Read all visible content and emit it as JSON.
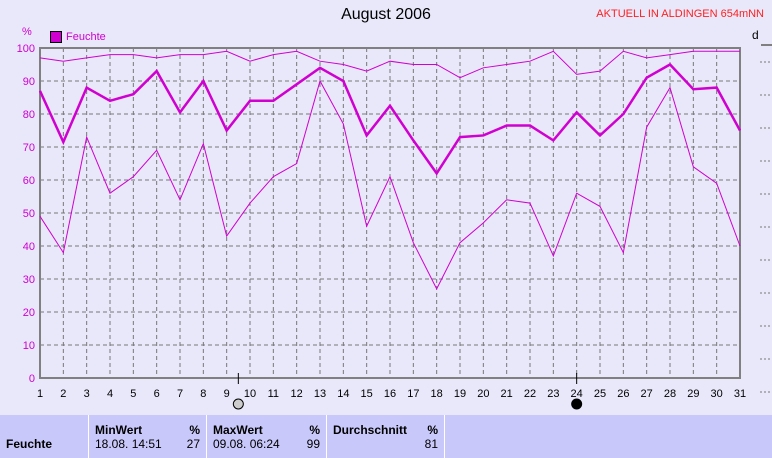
{
  "header": {
    "title": "August 2006",
    "station": "AKTUELL IN ALDINGEN 654mNN",
    "right_label": "d"
  },
  "chart_data": {
    "type": "line",
    "title": "August 2006",
    "ylabel": "%",
    "ylim": [
      0,
      100
    ],
    "yticks": [
      0,
      10,
      20,
      30,
      40,
      50,
      60,
      70,
      80,
      90,
      100
    ],
    "x": [
      1,
      2,
      3,
      4,
      5,
      6,
      7,
      8,
      9,
      10,
      11,
      12,
      13,
      14,
      15,
      16,
      17,
      18,
      19,
      20,
      21,
      22,
      23,
      24,
      25,
      26,
      27,
      28,
      29,
      30,
      31
    ],
    "legend": "top-left",
    "legend_entries": [
      "Feuchte"
    ],
    "grid": true,
    "color": "#d000d0",
    "moon_phases": [
      {
        "day": 9.5,
        "phase": "full-moon"
      },
      {
        "day": 24,
        "phase": "new-moon"
      }
    ],
    "series": [
      {
        "values": [
          97,
          96,
          97,
          98,
          98,
          97,
          98,
          98,
          99,
          96,
          98,
          99,
          96,
          95,
          93,
          96,
          95,
          95,
          91,
          94,
          95,
          96,
          99,
          92,
          93,
          99,
          97,
          98,
          99,
          99,
          99
        ]
      },
      {
        "values": [
          87,
          71.5,
          88,
          84,
          86,
          93,
          80.5,
          90,
          75,
          84,
          84,
          89,
          94,
          90,
          73.5,
          82.5,
          72,
          62,
          73,
          73.5,
          76.5,
          76.5,
          72,
          80.5,
          73.5,
          80,
          91,
          95,
          87.5,
          88,
          75
        ]
      },
      {
        "values": [
          49,
          38,
          73,
          56,
          61,
          69,
          54,
          71,
          43,
          53,
          61,
          65,
          90,
          77,
          46,
          61,
          41,
          27,
          41,
          47,
          54,
          53,
          37,
          56,
          52,
          38,
          76,
          88,
          64,
          59,
          40
        ]
      }
    ]
  },
  "table": {
    "row_label": "Feuchte",
    "min": {
      "header": "MinWert",
      "unit": "%",
      "time": "18.08.  14:51",
      "value": "27"
    },
    "max": {
      "header": "MaxWert",
      "unit": "%",
      "time": "09.08.  06:24",
      "value": "99"
    },
    "avg": {
      "header": "Durchschnitt",
      "unit": "%",
      "value": "81"
    }
  }
}
